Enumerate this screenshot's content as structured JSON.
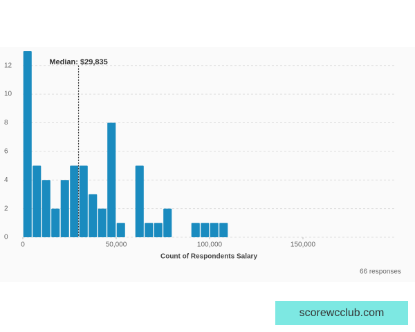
{
  "chart_data": {
    "type": "histogram",
    "xlabel": "Count of Respondents Salary",
    "bins": [
      0,
      5000,
      10000,
      15000,
      20000,
      25000,
      30000,
      35000,
      40000,
      45000,
      50000,
      55000,
      60000,
      65000,
      70000,
      75000,
      80000,
      85000,
      90000,
      95000,
      100000,
      105000,
      110000
    ],
    "values": [
      13,
      5,
      4,
      2,
      4,
      5,
      5,
      3,
      2,
      8,
      1,
      0,
      5,
      1,
      1,
      2,
      0,
      0,
      1,
      1,
      1,
      1
    ],
    "color": "#1a8bbf",
    "xlim": [
      0,
      200000
    ],
    "xticks": [
      0,
      {
        "value": 50000,
        "label": "50,000"
      },
      {
        "value": 100000,
        "label": "100,000"
      },
      {
        "value": 150000,
        "label": "150,000"
      }
    ],
    "ylim": [
      0,
      13
    ],
    "yticks": [
      0,
      2,
      4,
      6,
      8,
      10,
      12
    ],
    "grid": true,
    "annotation": {
      "value": 29835,
      "label": "Median: $29,835"
    },
    "footnote": "66 responses"
  },
  "watermark": "scorewcclub.com"
}
